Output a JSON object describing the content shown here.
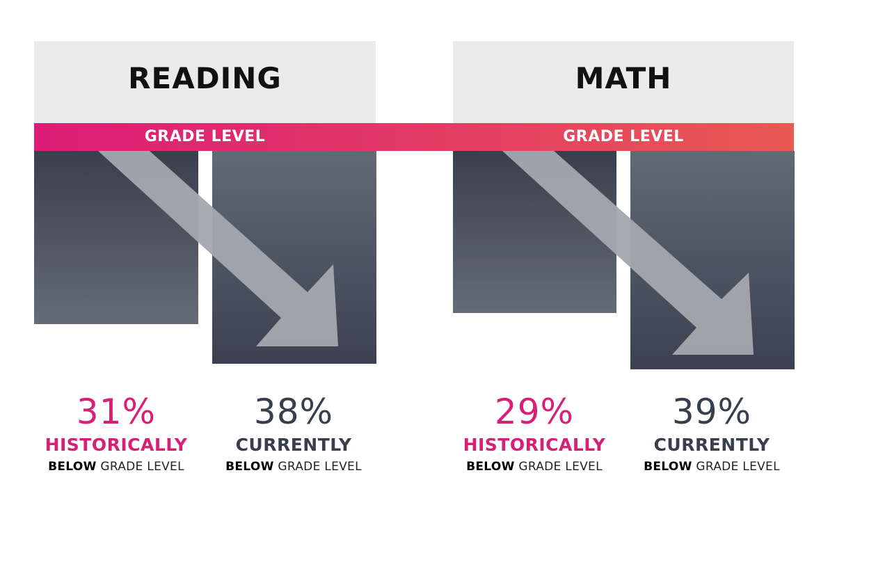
{
  "colors": {
    "accent_pink": "#d81f77",
    "dark_slate": "#383e4b",
    "header_gray": "#ebebec",
    "arrow_gray": "#a3a7ae"
  },
  "band_label": "GRADE LEVEL",
  "chart_data": [
    {
      "type": "bar",
      "title": "READING",
      "categories": [
        "HISTORICALLY",
        "CURRENTLY"
      ],
      "values": [
        31,
        38
      ],
      "unit": "%",
      "subtitle_bold": "BELOW",
      "subtitle_rest": "GRADE LEVEL",
      "reference_line": "GRADE LEVEL",
      "direction": "downward",
      "value_labels": [
        "31%",
        "38%"
      ]
    },
    {
      "type": "bar",
      "title": "MATH",
      "categories": [
        "HISTORICALLY",
        "CURRENTLY"
      ],
      "values": [
        29,
        39
      ],
      "unit": "%",
      "subtitle_bold": "BELOW",
      "subtitle_rest": "GRADE LEVEL",
      "reference_line": "GRADE LEVEL",
      "direction": "downward",
      "value_labels": [
        "29%",
        "39%"
      ]
    }
  ]
}
